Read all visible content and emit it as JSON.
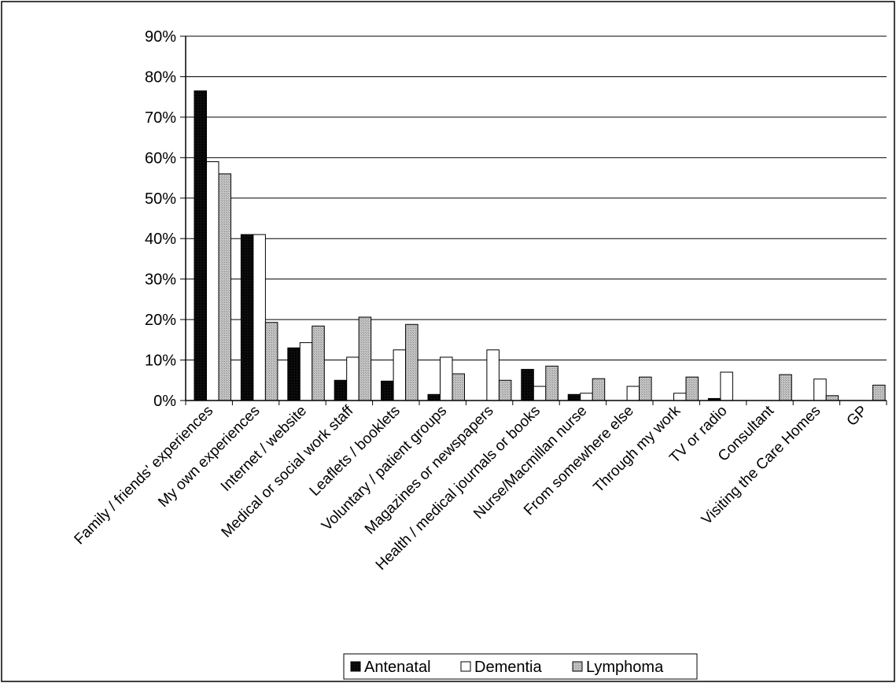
{
  "chart_data": {
    "type": "bar",
    "title": "",
    "xlabel": "",
    "ylabel": "",
    "ylim": [
      0,
      90
    ],
    "yticks": [
      "0%",
      "10%",
      "20%",
      "30%",
      "40%",
      "50%",
      "60%",
      "70%",
      "80%",
      "90%"
    ],
    "grid": true,
    "legend_position": "bottom",
    "categories": [
      "Family / friends' experiences",
      "My own experiences",
      "Internet / website",
      "Medical or social work staff",
      "Leaflets / booklets",
      "Voluntary / patient groups",
      "Magazines or newspapers",
      "Health / medical journals or books",
      "Nurse/Macmillan nurse",
      "From somewhere else",
      "Through my work",
      "TV or radio",
      "Consultant",
      "Visiting the Care Homes",
      "GP"
    ],
    "series": [
      {
        "name": "Antenatal",
        "color": "#000000",
        "values": [
          76.5,
          41,
          13,
          5,
          4.8,
          1.5,
          0,
          7.7,
          1.5,
          0,
          0,
          0.5,
          0,
          0,
          0
        ]
      },
      {
        "name": "Dementia",
        "color": "#ffffff",
        "values": [
          59,
          41,
          14.3,
          10.7,
          12.5,
          10.7,
          12.5,
          3.5,
          1.8,
          3.5,
          1.8,
          7,
          0,
          5.3,
          0
        ]
      },
      {
        "name": "Lymphoma",
        "color": "#c0c0c0",
        "values": [
          56,
          19.3,
          18.4,
          20.6,
          18.8,
          6.6,
          5,
          8.5,
          5.4,
          5.8,
          5.8,
          0,
          6.4,
          1.2,
          3.8
        ]
      }
    ]
  }
}
